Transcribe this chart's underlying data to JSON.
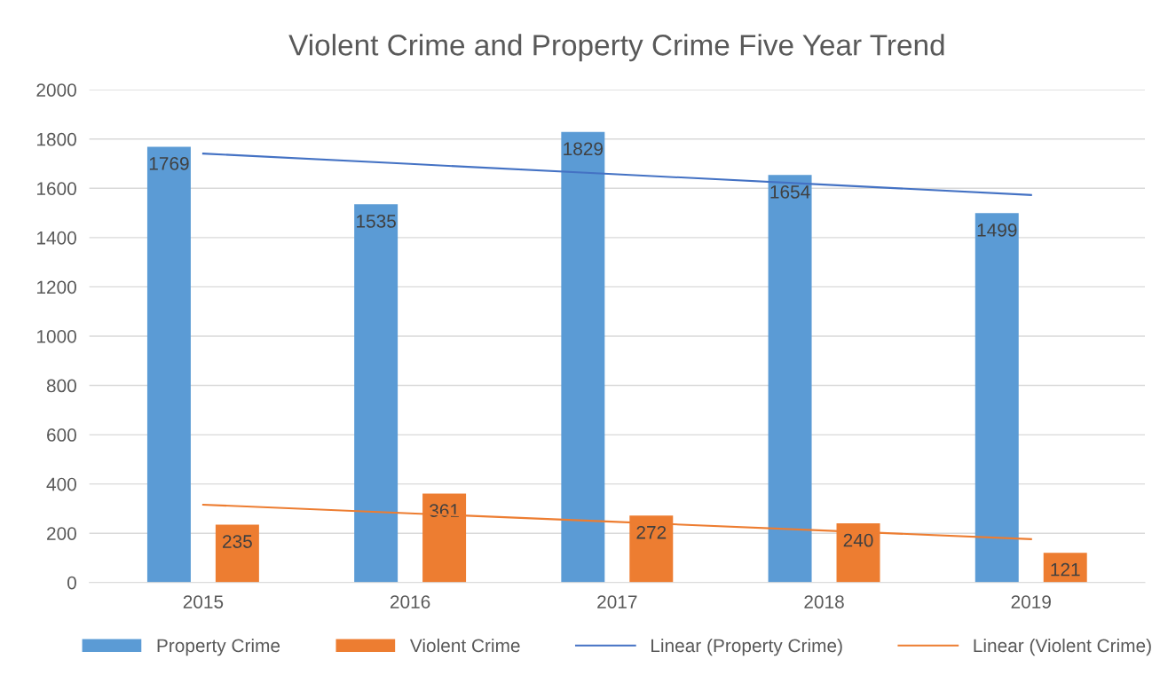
{
  "chart_data": {
    "type": "bar",
    "title": "Violent Crime and Property Crime Five Year Trend",
    "categories": [
      "2015",
      "2016",
      "2017",
      "2018",
      "2019"
    ],
    "series": [
      {
        "name": "Property Crime",
        "color": "#5b9bd5",
        "values": [
          1769,
          1535,
          1829,
          1654,
          1499
        ],
        "value_labels": [
          "1769",
          "1535",
          "1829",
          "1654",
          "1499"
        ]
      },
      {
        "name": "Violent Crime",
        "color": "#ed7d31",
        "values": [
          235,
          361,
          272,
          240,
          121
        ],
        "value_labels": [
          "235",
          "361",
          "272",
          "240",
          "121"
        ]
      },
      {
        "name": "Linear (Property Crime)",
        "type": "line",
        "color": "#4472c4",
        "values": [
          1741,
          1699,
          1657,
          1615,
          1573
        ]
      },
      {
        "name": "Linear (Violent Crime)",
        "type": "line",
        "color": "#ed7d31",
        "values": [
          316,
          281,
          246,
          211,
          176
        ]
      }
    ],
    "ylim": [
      0,
      2000
    ],
    "yticks": [
      0,
      200,
      400,
      600,
      800,
      1000,
      1200,
      1400,
      1600,
      1800,
      2000
    ],
    "grid": "y",
    "legend": "bottom"
  }
}
